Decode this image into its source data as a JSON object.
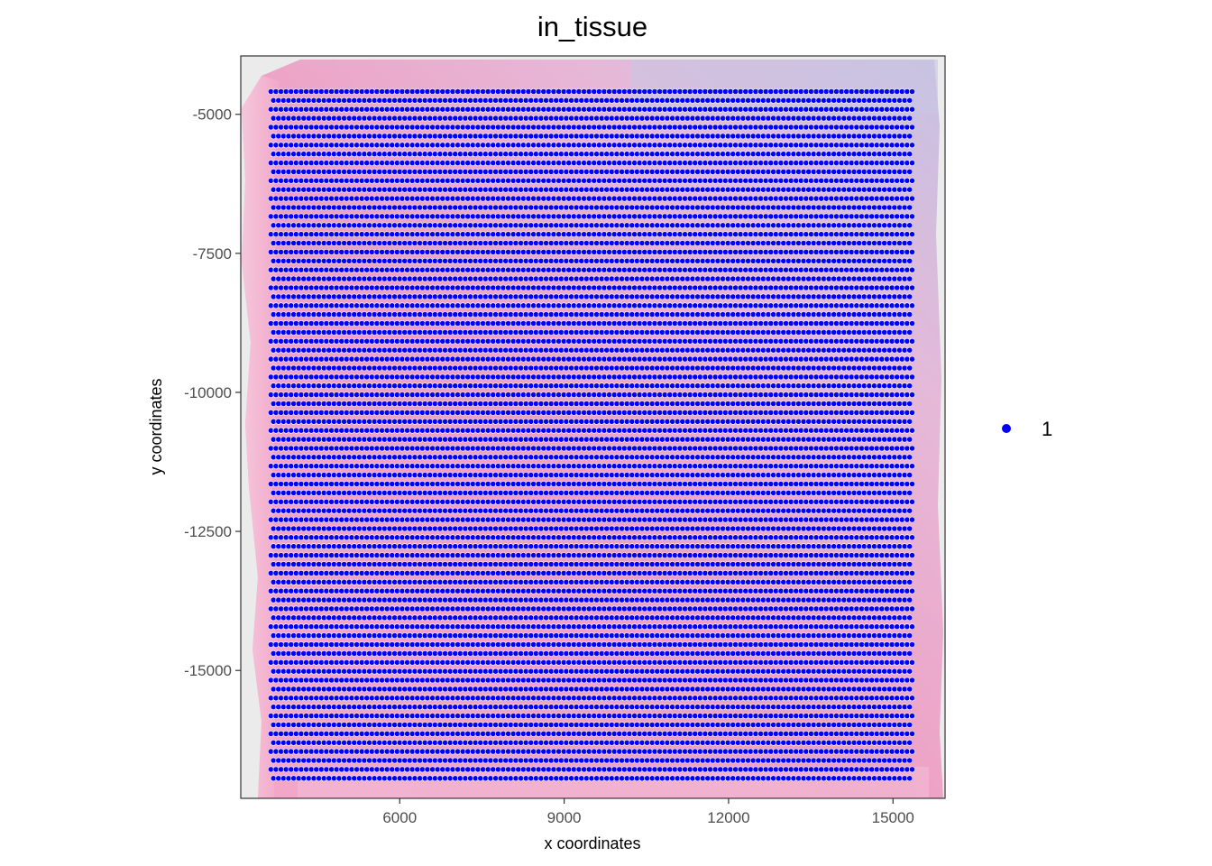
{
  "chart_data": {
    "type": "scatter",
    "title": "in_tissue",
    "xlabel": "x coordinates",
    "ylabel": "y coordinates",
    "xlim": [
      3100,
      15950
    ],
    "ylim": [
      -17300,
      -3950
    ],
    "x_ticks": [
      6000,
      9000,
      12000,
      15000
    ],
    "x_tick_labels": [
      "6000",
      "9000",
      "12000",
      "15000"
    ],
    "y_ticks": [
      -5000,
      -7500,
      -10000,
      -12500,
      -15000
    ],
    "y_tick_labels": [
      "-5000",
      "-7500",
      "-10000",
      "-12500",
      "-15000"
    ],
    "background": "H&E tissue image",
    "grid": false,
    "legend": {
      "position": "right",
      "entries": [
        {
          "label": "1",
          "color": "#0000ff"
        }
      ]
    },
    "series": [
      {
        "name": "1",
        "color": "#0000ff",
        "edge_color": "#ffffff",
        "pattern": "hexagonal spot grid",
        "x_range": [
          3650,
          15350
        ],
        "y_range": [
          -16940,
          -4590
        ],
        "columns": 128,
        "rows": 78
      }
    ]
  },
  "colors": {
    "panel_bg": "#ebebeb",
    "tissue_pink": "#f2a4c6",
    "tissue_purple": "#c8bfe0",
    "spot": "#0000ff",
    "axis": "#333333"
  }
}
